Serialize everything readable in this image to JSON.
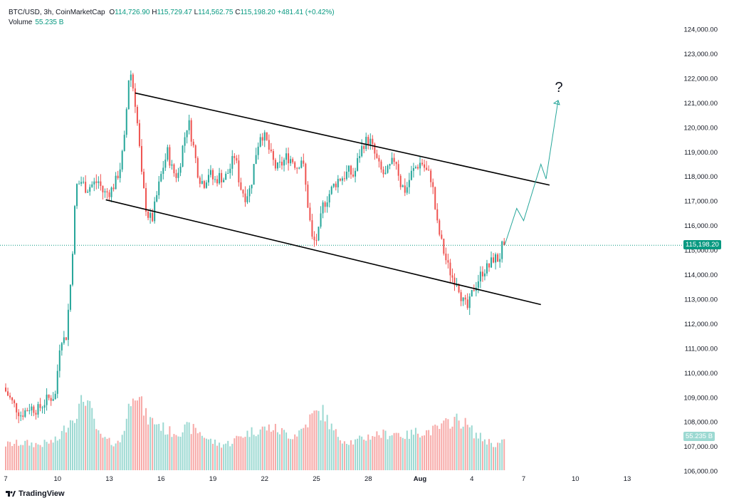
{
  "header": {
    "symbol": "BTC/USD, 3h, CoinMarketCap",
    "open_label": "O",
    "open": "114,726.90",
    "high_label": "H",
    "high": "115,729.47",
    "low_label": "L",
    "low": "114,562.75",
    "close_label": "C",
    "close": "115,198.20",
    "change": "+481.41 (+0.42%)",
    "volume_label": "Volume",
    "volume": "55.235 B"
  },
  "badges": {
    "last_price": "115,198.20",
    "volume": "55.235 B"
  },
  "annotation": {
    "question": "?"
  },
  "brand": {
    "name": "TradingView"
  },
  "colors": {
    "up": "#26a69a",
    "down": "#ef5350",
    "up_vol": "#9cd9d2",
    "down_vol": "#f7a9a7",
    "badge": "#089981",
    "trend": "#000000"
  },
  "chart_data": {
    "type": "candlestick",
    "yaxis_ticks": [
      "124,000.00",
      "123,000.00",
      "122,000.00",
      "121,000.00",
      "120,000.00",
      "119,000.00",
      "118,000.00",
      "117,000.00",
      "116,000.00",
      "115,000.00",
      "114,000.00",
      "113,000.00",
      "112,000.00",
      "111,000.00",
      "110,000.00",
      "109,000.00",
      "108,000.00",
      "107,000.00",
      "106,000.00"
    ],
    "ylim": [
      106000,
      124000
    ],
    "xaxis_ticks": [
      "7",
      "10",
      "13",
      "16",
      "19",
      "22",
      "25",
      "28",
      "Aug",
      "4",
      "7",
      "10",
      "13"
    ],
    "last_price": 115198.2,
    "price_path": [
      {
        "day": 7.0,
        "price": 109400
      },
      {
        "day": 7.5,
        "price": 108800
      },
      {
        "day": 8.0,
        "price": 108300
      },
      {
        "day": 8.5,
        "price": 108600
      },
      {
        "day": 9.0,
        "price": 108500
      },
      {
        "day": 9.5,
        "price": 108900
      },
      {
        "day": 10.0,
        "price": 109100
      },
      {
        "day": 10.3,
        "price": 111500
      },
      {
        "day": 10.6,
        "price": 111300
      },
      {
        "day": 10.9,
        "price": 113800
      },
      {
        "day": 11.2,
        "price": 117600
      },
      {
        "day": 11.5,
        "price": 117800
      },
      {
        "day": 11.8,
        "price": 117500
      },
      {
        "day": 12.2,
        "price": 117700
      },
      {
        "day": 12.5,
        "price": 117800
      },
      {
        "day": 12.8,
        "price": 117300
      },
      {
        "day": 13.2,
        "price": 117400
      },
      {
        "day": 13.5,
        "price": 117800
      },
      {
        "day": 13.8,
        "price": 118500
      },
      {
        "day": 14.0,
        "price": 119500
      },
      {
        "day": 14.3,
        "price": 122500
      },
      {
        "day": 14.6,
        "price": 121200
      },
      {
        "day": 14.8,
        "price": 119800
      },
      {
        "day": 15.0,
        "price": 118000
      },
      {
        "day": 15.3,
        "price": 116500
      },
      {
        "day": 15.6,
        "price": 116200
      },
      {
        "day": 15.9,
        "price": 117300
      },
      {
        "day": 16.2,
        "price": 118300
      },
      {
        "day": 16.5,
        "price": 119000
      },
      {
        "day": 16.8,
        "price": 118200
      },
      {
        "day": 17.1,
        "price": 118000
      },
      {
        "day": 17.4,
        "price": 119300
      },
      {
        "day": 17.7,
        "price": 120300
      },
      {
        "day": 18.0,
        "price": 119200
      },
      {
        "day": 18.3,
        "price": 118000
      },
      {
        "day": 18.6,
        "price": 117700
      },
      {
        "day": 18.9,
        "price": 118200
      },
      {
        "day": 19.2,
        "price": 117800
      },
      {
        "day": 19.5,
        "price": 118000
      },
      {
        "day": 19.8,
        "price": 117900
      },
      {
        "day": 20.1,
        "price": 118300
      },
      {
        "day": 20.4,
        "price": 118900
      },
      {
        "day": 20.7,
        "price": 117600
      },
      {
        "day": 21.0,
        "price": 117200
      },
      {
        "day": 21.3,
        "price": 117500
      },
      {
        "day": 21.6,
        "price": 118900
      },
      {
        "day": 21.9,
        "price": 119800
      },
      {
        "day": 22.2,
        "price": 119500
      },
      {
        "day": 22.5,
        "price": 118800
      },
      {
        "day": 22.8,
        "price": 118300
      },
      {
        "day": 23.1,
        "price": 118500
      },
      {
        "day": 23.4,
        "price": 118800
      },
      {
        "day": 23.7,
        "price": 118700
      },
      {
        "day": 24.0,
        "price": 118400
      },
      {
        "day": 24.3,
        "price": 118800
      },
      {
        "day": 24.6,
        "price": 117000
      },
      {
        "day": 24.9,
        "price": 115300
      },
      {
        "day": 25.2,
        "price": 115500
      },
      {
        "day": 25.5,
        "price": 116800
      },
      {
        "day": 25.8,
        "price": 117200
      },
      {
        "day": 26.1,
        "price": 117600
      },
      {
        "day": 26.4,
        "price": 117900
      },
      {
        "day": 26.7,
        "price": 118000
      },
      {
        "day": 27.0,
        "price": 118200
      },
      {
        "day": 27.3,
        "price": 118000
      },
      {
        "day": 27.6,
        "price": 118900
      },
      {
        "day": 27.9,
        "price": 119400
      },
      {
        "day": 28.2,
        "price": 119500
      },
      {
        "day": 28.5,
        "price": 118900
      },
      {
        "day": 28.8,
        "price": 118300
      },
      {
        "day": 29.1,
        "price": 118000
      },
      {
        "day": 29.4,
        "price": 118400
      },
      {
        "day": 29.7,
        "price": 118800
      },
      {
        "day": 30.0,
        "price": 117700
      },
      {
        "day": 30.3,
        "price": 117400
      },
      {
        "day": 30.6,
        "price": 118100
      },
      {
        "day": 30.9,
        "price": 118400
      },
      {
        "day": 31.2,
        "price": 118600
      },
      {
        "day": 31.5,
        "price": 118200
      },
      {
        "day": 31.8,
        "price": 117900
      },
      {
        "day": 32.1,
        "price": 116100
      },
      {
        "day": 32.4,
        "price": 115200
      },
      {
        "day": 32.7,
        "price": 114400
      },
      {
        "day": 33.0,
        "price": 113900
      },
      {
        "day": 33.3,
        "price": 113700
      },
      {
        "day": 33.6,
        "price": 112900
      },
      {
        "day": 33.9,
        "price": 112600
      },
      {
        "day": 34.2,
        "price": 113400
      },
      {
        "day": 34.5,
        "price": 113800
      },
      {
        "day": 34.8,
        "price": 114200
      },
      {
        "day": 35.1,
        "price": 114300
      },
      {
        "day": 35.4,
        "price": 114700
      },
      {
        "day": 35.7,
        "price": 114600
      },
      {
        "day": 35.9,
        "price": 115198
      }
    ],
    "volume_path": [
      {
        "day": 7.0,
        "vol": 0.3
      },
      {
        "day": 8.0,
        "vol": 0.32
      },
      {
        "day": 9.0,
        "vol": 0.3
      },
      {
        "day": 10.0,
        "vol": 0.35
      },
      {
        "day": 10.6,
        "vol": 0.55
      },
      {
        "day": 11.2,
        "vol": 0.7
      },
      {
        "day": 11.6,
        "vol": 0.88
      },
      {
        "day": 12.0,
        "vol": 0.65
      },
      {
        "day": 12.4,
        "vol": 0.4
      },
      {
        "day": 13.0,
        "vol": 0.33
      },
      {
        "day": 13.6,
        "vol": 0.32
      },
      {
        "day": 14.0,
        "vol": 0.6
      },
      {
        "day": 14.4,
        "vol": 1.0
      },
      {
        "day": 14.8,
        "vol": 0.8
      },
      {
        "day": 15.2,
        "vol": 0.6
      },
      {
        "day": 15.8,
        "vol": 0.55
      },
      {
        "day": 16.4,
        "vol": 0.45
      },
      {
        "day": 17.0,
        "vol": 0.45
      },
      {
        "day": 17.6,
        "vol": 0.5
      },
      {
        "day": 18.2,
        "vol": 0.45
      },
      {
        "day": 18.8,
        "vol": 0.35
      },
      {
        "day": 19.4,
        "vol": 0.3
      },
      {
        "day": 20.0,
        "vol": 0.32
      },
      {
        "day": 20.6,
        "vol": 0.4
      },
      {
        "day": 21.2,
        "vol": 0.45
      },
      {
        "day": 21.8,
        "vol": 0.48
      },
      {
        "day": 22.4,
        "vol": 0.5
      },
      {
        "day": 23.0,
        "vol": 0.45
      },
      {
        "day": 23.6,
        "vol": 0.4
      },
      {
        "day": 24.2,
        "vol": 0.48
      },
      {
        "day": 24.8,
        "vol": 0.65
      },
      {
        "day": 25.4,
        "vol": 0.68
      },
      {
        "day": 26.0,
        "vol": 0.45
      },
      {
        "day": 26.6,
        "vol": 0.35
      },
      {
        "day": 27.2,
        "vol": 0.33
      },
      {
        "day": 27.8,
        "vol": 0.38
      },
      {
        "day": 28.4,
        "vol": 0.42
      },
      {
        "day": 29.0,
        "vol": 0.42
      },
      {
        "day": 29.6,
        "vol": 0.44
      },
      {
        "day": 30.2,
        "vol": 0.4
      },
      {
        "day": 30.8,
        "vol": 0.45
      },
      {
        "day": 31.4,
        "vol": 0.45
      },
      {
        "day": 32.0,
        "vol": 0.48
      },
      {
        "day": 32.6,
        "vol": 0.55
      },
      {
        "day": 33.0,
        "vol": 0.6
      },
      {
        "day": 33.6,
        "vol": 0.55
      },
      {
        "day": 34.2,
        "vol": 0.42
      },
      {
        "day": 34.8,
        "vol": 0.35
      },
      {
        "day": 35.4,
        "vol": 0.3
      },
      {
        "day": 35.9,
        "vol": 0.33
      }
    ],
    "channel_upper": [
      {
        "day": 14.5,
        "price": 121400
      },
      {
        "day": 38.5,
        "price": 117650
      }
    ],
    "channel_lower": [
      {
        "day": 12.8,
        "price": 117050
      },
      {
        "day": 38.0,
        "price": 112780
      }
    ],
    "projection": [
      {
        "day": 35.9,
        "price": 115198
      },
      {
        "day": 36.6,
        "price": 116700
      },
      {
        "day": 37.0,
        "price": 116200
      },
      {
        "day": 38.0,
        "price": 118500
      },
      {
        "day": 38.3,
        "price": 117900
      },
      {
        "day": 39.0,
        "price": 121100
      }
    ]
  }
}
